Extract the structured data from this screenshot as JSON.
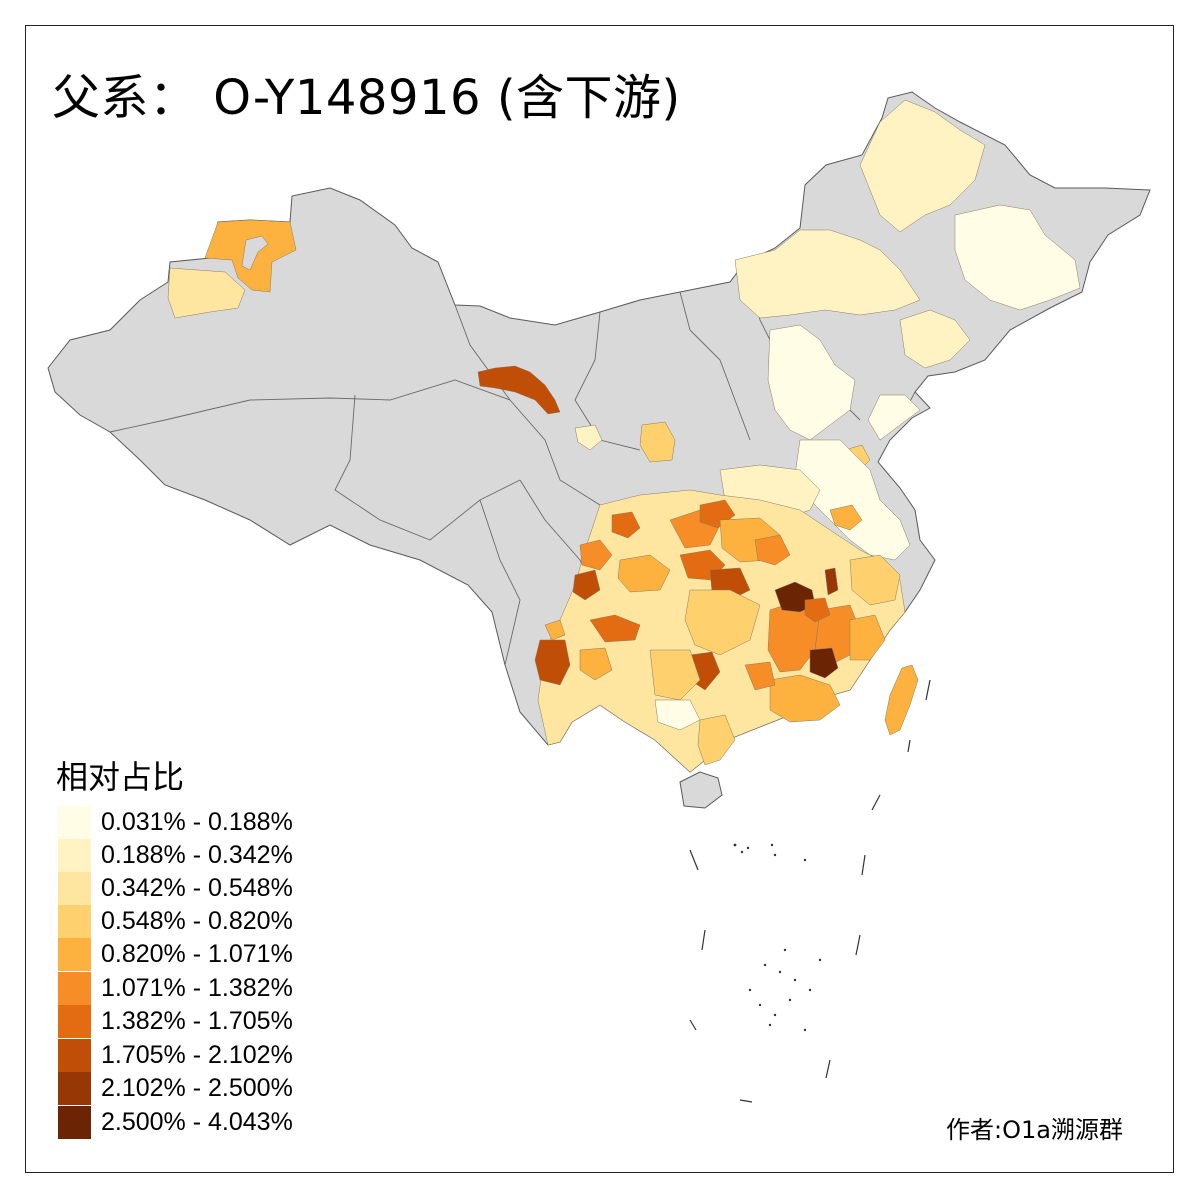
{
  "title": "父系： O-Y148916 (含下游)",
  "legend": {
    "title": "相对占比",
    "items": [
      {
        "label": "0.031% - 0.188%",
        "color": "#fffde6"
      },
      {
        "label": "0.188% - 0.342%",
        "color": "#fff3c4"
      },
      {
        "label": "0.342% - 0.548%",
        "color": "#fee6a0"
      },
      {
        "label": "0.548% - 0.820%",
        "color": "#fed06e"
      },
      {
        "label": "0.820% - 1.071%",
        "color": "#fdb13e"
      },
      {
        "label": "1.071% - 1.382%",
        "color": "#f68d26"
      },
      {
        "label": "1.382% - 1.705%",
        "color": "#e36c12"
      },
      {
        "label": "1.705% - 2.102%",
        "color": "#c14e07"
      },
      {
        "label": "2.102% - 2.500%",
        "color": "#973705"
      },
      {
        "label": "2.500% - 4.043%",
        "color": "#6b2404"
      }
    ]
  },
  "credit": "作者:O1a溯源群",
  "colors": {
    "no_data": "#d9d9d9",
    "border": "#5a5a5a",
    "frame": "#222222"
  }
}
